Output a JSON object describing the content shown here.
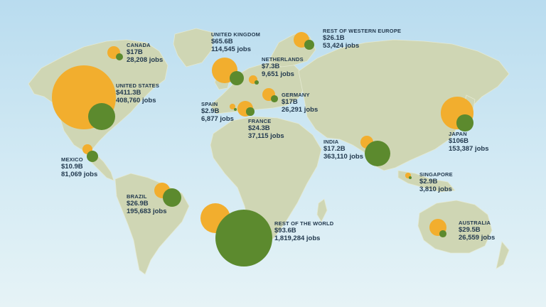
{
  "colors": {
    "spend": "#f2ae2e",
    "jobs": "#5c8a2e",
    "land": "#cfd6b4",
    "text": "#233a4f"
  },
  "countries": [
    {
      "id": "canada",
      "name": "CANADA",
      "value": "$17B",
      "jobs": "28,208 jobs",
      "spend_b": 17,
      "jobs_n": 28208
    },
    {
      "id": "united-states",
      "name": "UNITED STATES",
      "value": "$411.3B",
      "jobs": "408,760 jobs",
      "spend_b": 411.3,
      "jobs_n": 408760
    },
    {
      "id": "mexico",
      "name": "MEXICO",
      "value": "$10.9B",
      "jobs": "81,069 jobs",
      "spend_b": 10.9,
      "jobs_n": 81069
    },
    {
      "id": "brazil",
      "name": "BRAZIL",
      "value": "$26.9B",
      "jobs": "195,683 jobs",
      "spend_b": 26.9,
      "jobs_n": 195683
    },
    {
      "id": "united-kingdom",
      "name": "UNITED KINGDOM",
      "value": "$65.6B",
      "jobs": "114,545 jobs",
      "spend_b": 65.6,
      "jobs_n": 114545
    },
    {
      "id": "netherlands",
      "name": "NETHERLANDS",
      "value": "$7.3B",
      "jobs": "9,651 jobs",
      "spend_b": 7.3,
      "jobs_n": 9651
    },
    {
      "id": "rest-of-western-europe",
      "name": "REST OF WESTERN EUROPE",
      "value": "$26.1B",
      "jobs": "53,424 jobs",
      "spend_b": 26.1,
      "jobs_n": 53424
    },
    {
      "id": "germany",
      "name": "GERMANY",
      "value": "$17B",
      "jobs": "26,291 jobs",
      "spend_b": 17,
      "jobs_n": 26291
    },
    {
      "id": "spain",
      "name": "SPAIN",
      "value": "$2.9B",
      "jobs": "6,877 jobs",
      "spend_b": 2.9,
      "jobs_n": 6877
    },
    {
      "id": "france",
      "name": "FRANCE",
      "value": "$24.3B",
      "jobs": "37,115 jobs",
      "spend_b": 24.3,
      "jobs_n": 37115
    },
    {
      "id": "india",
      "name": "INDIA",
      "value": "$17.2B",
      "jobs": "363,110 jobs",
      "spend_b": 17.2,
      "jobs_n": 363110
    },
    {
      "id": "japan",
      "name": "JAPAN",
      "value": "$106B",
      "jobs": "153,387 jobs",
      "spend_b": 106,
      "jobs_n": 153387
    },
    {
      "id": "singapore",
      "name": "SINGAPORE",
      "value": "$2.9B",
      "jobs": "3,810 jobs",
      "spend_b": 2.9,
      "jobs_n": 3810
    },
    {
      "id": "australia",
      "name": "AUSTRALIA",
      "value": "$29.5B",
      "jobs": "26,559 jobs",
      "spend_b": 29.5,
      "jobs_n": 26559
    },
    {
      "id": "rest-of-the-world",
      "name": "REST OF THE WORLD",
      "value": "$93.6B",
      "jobs": "1,819,284 jobs",
      "spend_b": 93.6,
      "jobs_n": 1819284
    }
  ]
}
